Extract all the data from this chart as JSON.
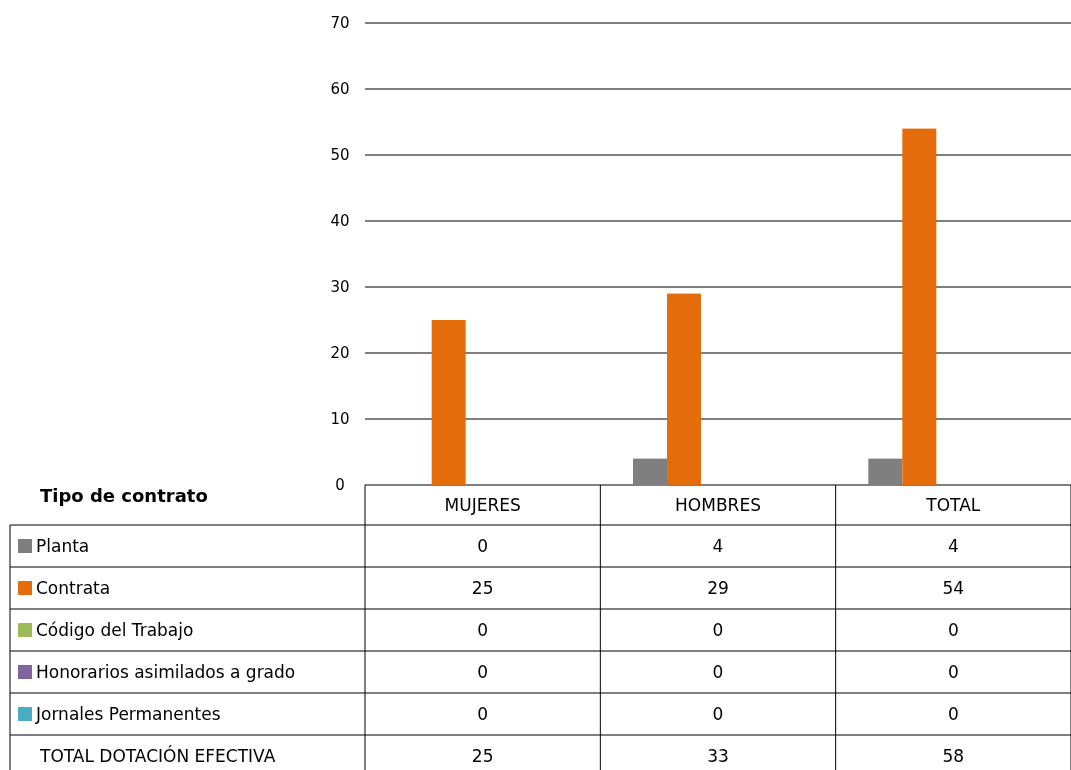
{
  "chart_data": {
    "type": "bar",
    "categories": [
      "MUJERES",
      "HOMBRES",
      "TOTAL"
    ],
    "series": [
      {
        "name": "Planta",
        "color": "#7f7f7f",
        "values": [
          0,
          4,
          4
        ]
      },
      {
        "name": "Contrata",
        "color": "#e46c0a",
        "values": [
          25,
          29,
          54
        ]
      },
      {
        "name": "Código del Trabajo",
        "color": "#9bbb59",
        "values": [
          0,
          0,
          0
        ]
      },
      {
        "name": "Honorarios asimilados a grado",
        "color": "#8064a2",
        "values": [
          0,
          0,
          0
        ]
      },
      {
        "name": "Jornales Permanentes",
        "color": "#4bacc6",
        "values": [
          0,
          0,
          0
        ]
      }
    ],
    "ylim": [
      0,
      70
    ],
    "yticks": [
      0,
      10,
      20,
      30,
      40,
      50,
      60,
      70
    ],
    "grid": "y",
    "legend": "bottom",
    "legend_title": "Tipo de contrato",
    "data_labels": true,
    "annotations": [
      "TOTAL DOTACIÓN EFECTIVA",
      "25",
      "33",
      "58"
    ]
  }
}
